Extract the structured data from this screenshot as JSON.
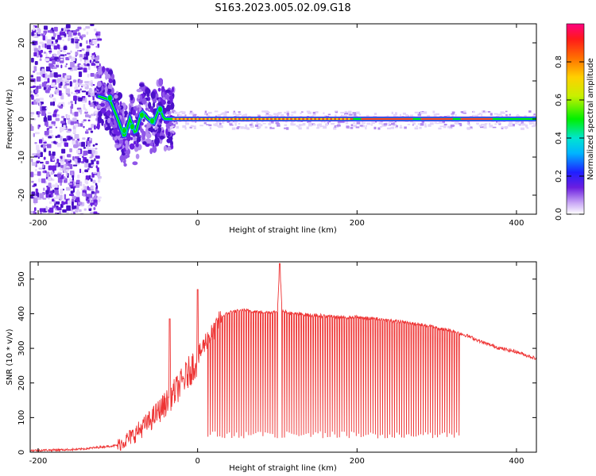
{
  "title": "S163.2023.005.02.09.G18",
  "chart_data": [
    {
      "type": "heatmap",
      "xlabel": "Height of straight line (km)",
      "ylabel": "Frequency (Hz)",
      "xlim": [
        -210,
        425
      ],
      "ylim": [
        -25,
        25
      ],
      "xticks": [
        -200,
        0,
        200,
        400
      ],
      "yticks": [
        -20,
        -10,
        0,
        10,
        20
      ],
      "colorbar": {
        "label": "Normalized spectral amplitude",
        "range": [
          0,
          1
        ],
        "ticks": [
          0.0,
          0.2,
          0.4,
          0.6,
          0.8
        ]
      },
      "grid": false,
      "ridge": {
        "description_x": [
          -125,
          -110,
          -100,
          -92,
          -85,
          -78,
          -70,
          -62,
          -55,
          -48,
          -42,
          -35,
          0,
          100,
          200,
          300,
          425
        ],
        "frequency": [
          6,
          5,
          0,
          -5,
          0,
          -4,
          2,
          0,
          -1,
          3,
          0,
          0,
          0,
          0,
          0,
          0,
          0
        ]
      }
    },
    {
      "type": "line",
      "xlabel": "Height of straight line (km)",
      "ylabel": "SNR (10 * v/v)",
      "xlim": [
        -210,
        425
      ],
      "ylim": [
        0,
        550
      ],
      "xticks": [
        -200,
        0,
        200,
        400
      ],
      "yticks": [
        0,
        100,
        200,
        300,
        400,
        500
      ],
      "color": "#ee3333",
      "series": [
        {
          "x": [
            -210,
            -150,
            -100,
            -80,
            -60,
            -40,
            -20,
            0,
            10,
            20,
            30,
            40,
            60,
            80,
            100,
            103,
            106,
            120,
            150,
            180,
            200,
            230,
            260,
            290,
            320,
            340,
            360,
            380,
            400,
            425
          ],
          "values": [
            5,
            8,
            20,
            50,
            90,
            140,
            200,
            270,
            320,
            350,
            390,
            405,
            410,
            405,
            405,
            540,
            410,
            400,
            395,
            390,
            390,
            383,
            375,
            365,
            350,
            335,
            315,
            300,
            290,
            270
          ]
        }
      ],
      "dropouts": {
        "x_from": 10,
        "x_to": 330,
        "low_value": 40
      },
      "spikes": [
        {
          "x": -35,
          "value": 385
        },
        {
          "x": 0,
          "value": 470
        },
        {
          "x": 103,
          "value": 545
        }
      ]
    }
  ]
}
